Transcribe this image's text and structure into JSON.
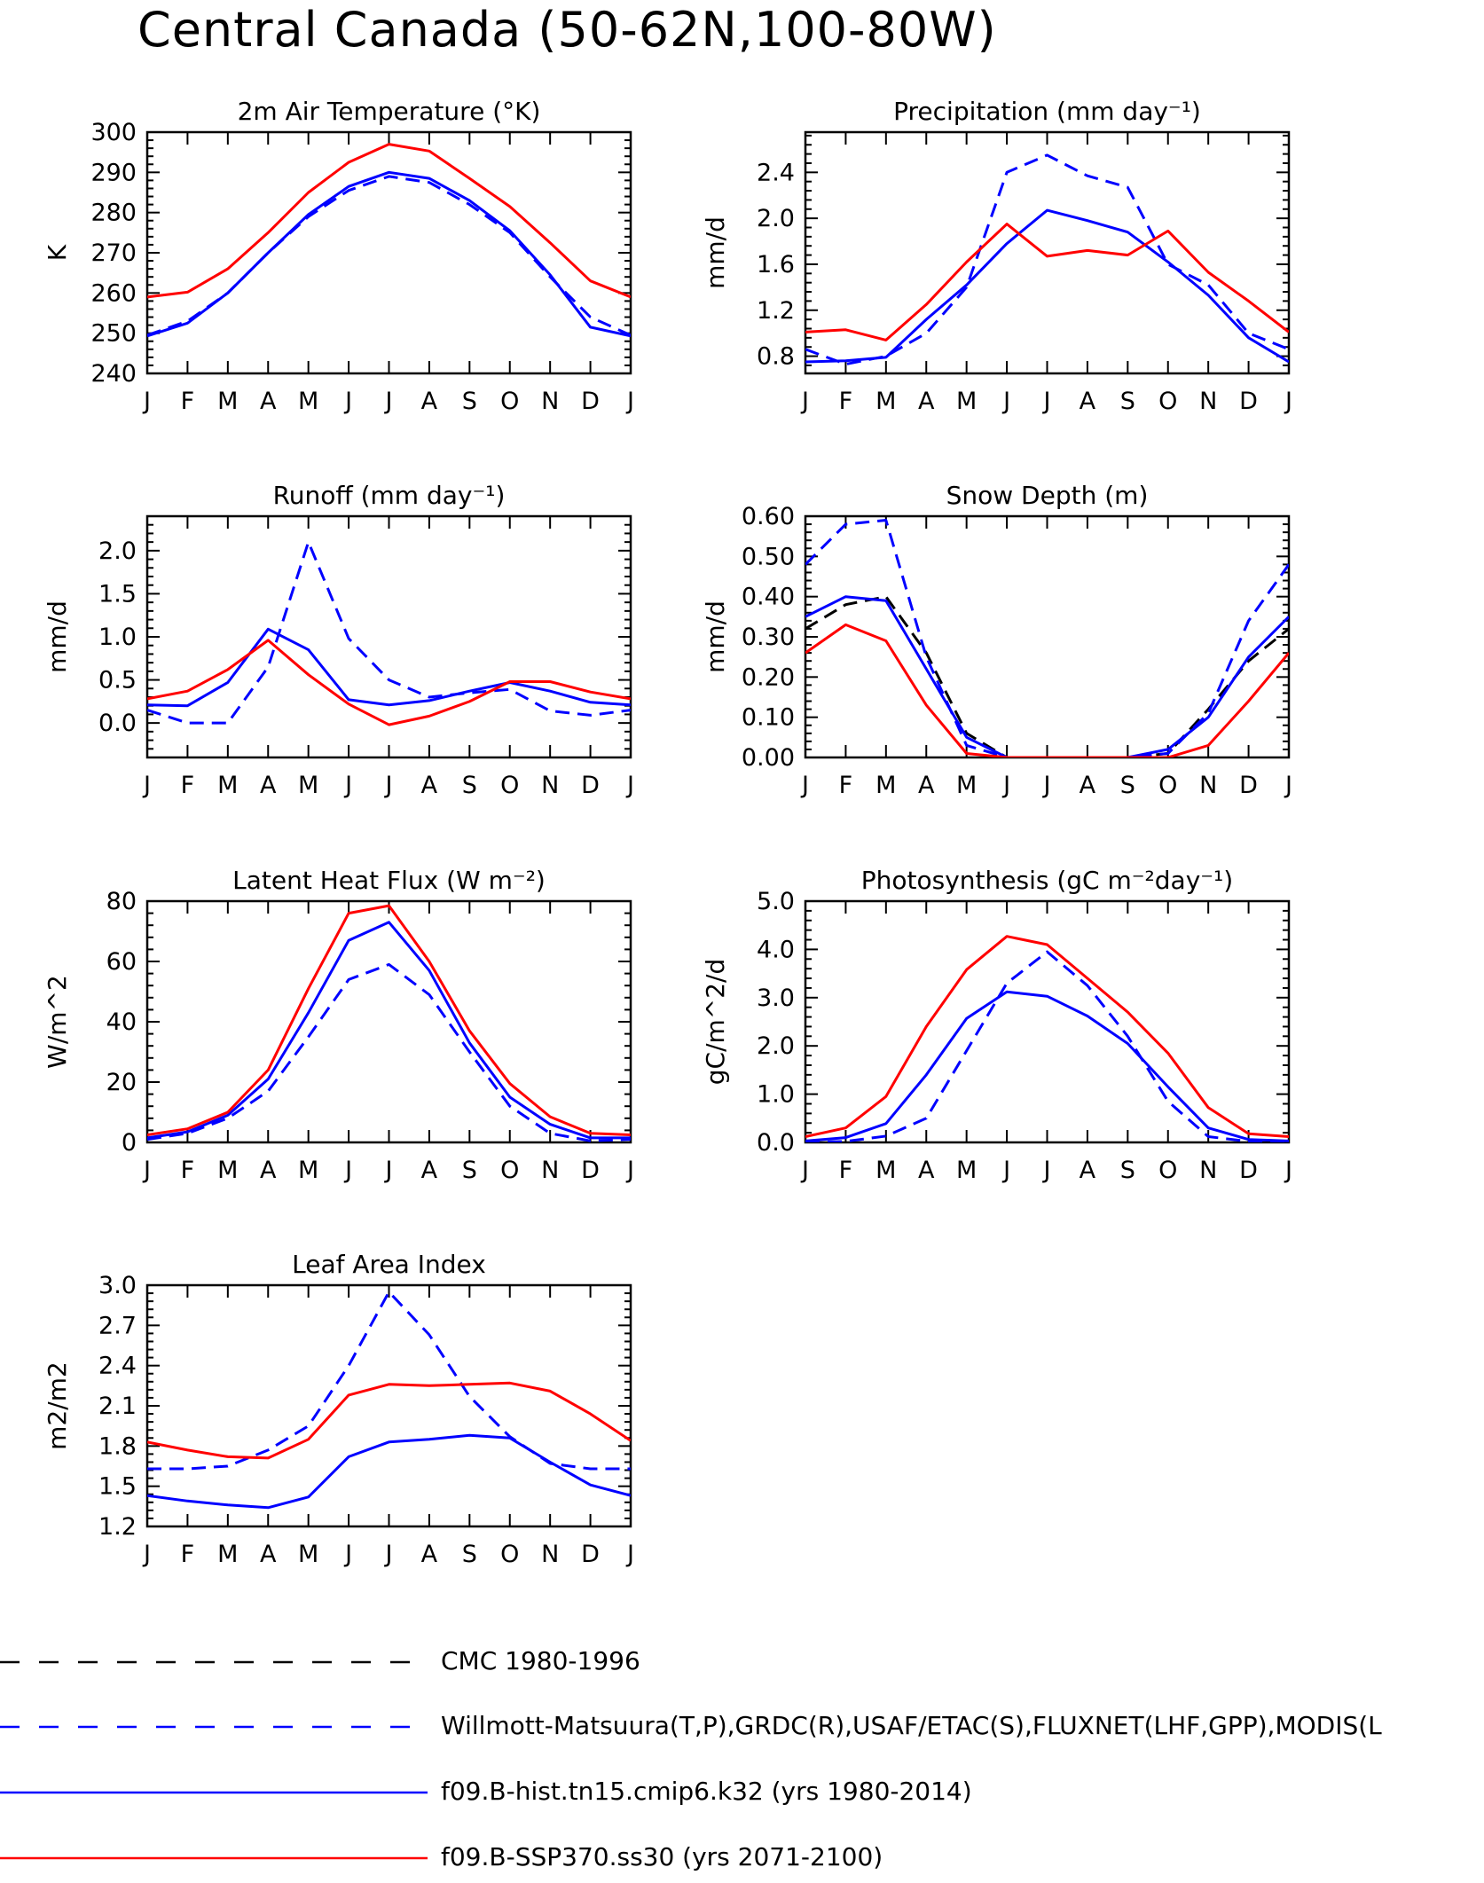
{
  "figure": {
    "title": "Central Canada (50-62N,100-80W)"
  },
  "months": [
    "J",
    "F",
    "M",
    "A",
    "M",
    "J",
    "J",
    "A",
    "S",
    "O",
    "N",
    "D",
    "J"
  ],
  "styles": {
    "cmc": {
      "color": "#000000",
      "dash": true
    },
    "obs": {
      "color": "#0000ff",
      "dash": true
    },
    "hist": {
      "color": "#0000ff",
      "dash": false
    },
    "ssp": {
      "color": "#ff0000",
      "dash": false
    }
  },
  "legend": [
    {
      "key": "cmc",
      "label": "CMC 1980-1996"
    },
    {
      "key": "obs",
      "label": "Willmott-Matsuura(T,P),GRDC(R),USAF/ETAC(S),FLUXNET(LHF,GPP),MODIS(L"
    },
    {
      "key": "hist",
      "label": "f09.B-hist.tn15.cmip6.k32 (yrs 1980-2014)"
    },
    {
      "key": "ssp",
      "label": "f09.B-SSP370.ss30 (yrs 2071-2100)"
    }
  ],
  "chart_data": [
    {
      "type": "line",
      "title": "2m Air Temperature (°K)",
      "ylabel": "K",
      "ylim": [
        240,
        300
      ],
      "yticks": [
        "240",
        "250",
        "260",
        "270",
        "280",
        "290",
        "300"
      ],
      "series": [
        {
          "style": "obs",
          "values": [
            249.5,
            253,
            260,
            270,
            279,
            285.5,
            289,
            287.5,
            282,
            275,
            264,
            254,
            249.5
          ]
        },
        {
          "style": "hist",
          "values": [
            249.3,
            252.5,
            260,
            270,
            279.5,
            286.5,
            290,
            288.5,
            283,
            275.5,
            264.5,
            251.5,
            249.3
          ]
        },
        {
          "style": "ssp",
          "values": [
            259,
            260.2,
            266,
            275,
            285,
            292.5,
            297,
            295.3,
            288.5,
            281.5,
            272.5,
            263,
            259
          ]
        }
      ]
    },
    {
      "type": "line",
      "title": "Precipitation (mm day⁻¹)",
      "ylabel": "mm/d",
      "ylim": [
        0.65,
        2.75
      ],
      "yticks": [
        "0.8",
        "1.2",
        "1.6",
        "2.0",
        "2.4"
      ],
      "series": [
        {
          "style": "obs",
          "values": [
            0.86,
            0.73,
            0.8,
            1.0,
            1.4,
            2.4,
            2.55,
            2.37,
            2.27,
            1.6,
            1.42,
            1.0,
            0.86
          ]
        },
        {
          "style": "hist",
          "values": [
            0.75,
            0.76,
            0.79,
            1.12,
            1.42,
            1.78,
            2.07,
            1.98,
            1.88,
            1.62,
            1.33,
            0.96,
            0.75
          ]
        },
        {
          "style": "ssp",
          "values": [
            1.01,
            1.03,
            0.94,
            1.25,
            1.62,
            1.95,
            1.67,
            1.72,
            1.68,
            1.89,
            1.53,
            1.28,
            1.01
          ]
        }
      ]
    },
    {
      "type": "line",
      "title": "Runoff (mm day⁻¹)",
      "ylabel": "mm/d",
      "ylim": [
        -0.4,
        2.4
      ],
      "yticks": [
        "0.0",
        "0.5",
        "1.0",
        "1.5",
        "2.0"
      ],
      "series": [
        {
          "style": "obs",
          "values": [
            0.15,
            0.0,
            0.0,
            0.65,
            2.1,
            0.98,
            0.5,
            0.3,
            0.35,
            0.39,
            0.14,
            0.09,
            0.15
          ]
        },
        {
          "style": "hist",
          "values": [
            0.21,
            0.2,
            0.47,
            1.09,
            0.85,
            0.27,
            0.21,
            0.26,
            0.37,
            0.47,
            0.37,
            0.24,
            0.21
          ]
        },
        {
          "style": "ssp",
          "values": [
            0.28,
            0.37,
            0.62,
            0.96,
            0.56,
            0.22,
            -0.02,
            0.08,
            0.25,
            0.48,
            0.48,
            0.36,
            0.28
          ]
        }
      ]
    },
    {
      "type": "line",
      "title": "Snow Depth (m)",
      "ylabel": "mm/d",
      "ylim": [
        0.0,
        0.6
      ],
      "yticks": [
        "0.00",
        "0.10",
        "0.20",
        "0.30",
        "0.40",
        "0.50",
        "0.60"
      ],
      "series": [
        {
          "style": "cmc",
          "values": [
            0.32,
            0.38,
            0.4,
            0.26,
            0.06,
            0.0,
            0.0,
            0.0,
            0.0,
            0.01,
            0.12,
            0.24,
            0.32
          ]
        },
        {
          "style": "obs",
          "values": [
            0.48,
            0.58,
            0.59,
            0.25,
            0.03,
            0.0,
            0.0,
            0.0,
            0.0,
            0.01,
            0.11,
            0.34,
            0.48
          ]
        },
        {
          "style": "hist",
          "values": [
            0.35,
            0.4,
            0.39,
            0.22,
            0.05,
            0.0,
            0.0,
            0.0,
            0.0,
            0.02,
            0.1,
            0.25,
            0.35
          ]
        },
        {
          "style": "ssp",
          "values": [
            0.26,
            0.33,
            0.29,
            0.13,
            0.01,
            0.0,
            0.0,
            0.0,
            0.0,
            0.0,
            0.03,
            0.14,
            0.26
          ]
        }
      ]
    },
    {
      "type": "line",
      "title": "Latent Heat Flux (W m⁻²)",
      "ylabel": "W/m^2",
      "ylim": [
        0,
        80
      ],
      "yticks": [
        "0",
        "20",
        "40",
        "60",
        "80"
      ],
      "series": [
        {
          "style": "obs",
          "values": [
            1,
            3,
            8,
            17,
            35,
            54,
            59,
            49,
            30,
            12,
            3,
            0.5,
            1
          ]
        },
        {
          "style": "hist",
          "values": [
            1.5,
            3.5,
            9,
            21,
            43,
            67,
            73,
            57,
            33,
            15,
            6,
            1.5,
            1.5
          ]
        },
        {
          "style": "ssp",
          "values": [
            2.5,
            4.5,
            10,
            24,
            51,
            76,
            78.5,
            60,
            37,
            19.5,
            8.5,
            3,
            2.5
          ]
        }
      ]
    },
    {
      "type": "line",
      "title": "Photosynthesis (gC m⁻²day⁻¹)",
      "ylabel": "gC/m^2/d",
      "ylim": [
        0.0,
        5.0
      ],
      "yticks": [
        "0.0",
        "1.0",
        "2.0",
        "3.0",
        "4.0",
        "5.0"
      ],
      "series": [
        {
          "style": "obs",
          "values": [
            0.0,
            0.02,
            0.13,
            0.5,
            1.9,
            3.3,
            3.95,
            3.25,
            2.2,
            0.85,
            0.12,
            0.02,
            0.0
          ]
        },
        {
          "style": "hist",
          "values": [
            0.03,
            0.1,
            0.39,
            1.4,
            2.57,
            3.12,
            3.03,
            2.62,
            2.05,
            1.15,
            0.3,
            0.06,
            0.03
          ]
        },
        {
          "style": "ssp",
          "values": [
            0.12,
            0.3,
            0.95,
            2.4,
            3.58,
            4.27,
            4.1,
            3.4,
            2.7,
            1.85,
            0.72,
            0.18,
            0.12
          ]
        }
      ]
    },
    {
      "type": "line",
      "title": "Leaf Area Index",
      "ylabel": "m2/m2",
      "ylim": [
        1.2,
        3.0
      ],
      "yticks": [
        "1.2",
        "1.5",
        "1.8",
        "2.1",
        "2.4",
        "2.7",
        "3.0"
      ],
      "series": [
        {
          "style": "obs",
          "values": [
            1.63,
            1.63,
            1.65,
            1.77,
            1.95,
            2.4,
            2.95,
            2.63,
            2.17,
            1.87,
            1.67,
            1.63,
            1.63
          ]
        },
        {
          "style": "hist",
          "values": [
            1.43,
            1.39,
            1.36,
            1.34,
            1.42,
            1.72,
            1.83,
            1.85,
            1.88,
            1.86,
            1.68,
            1.51,
            1.43
          ]
        },
        {
          "style": "ssp",
          "values": [
            1.83,
            1.77,
            1.72,
            1.71,
            1.85,
            2.18,
            2.26,
            2.25,
            2.26,
            2.27,
            2.21,
            2.04,
            1.84
          ]
        }
      ]
    }
  ]
}
